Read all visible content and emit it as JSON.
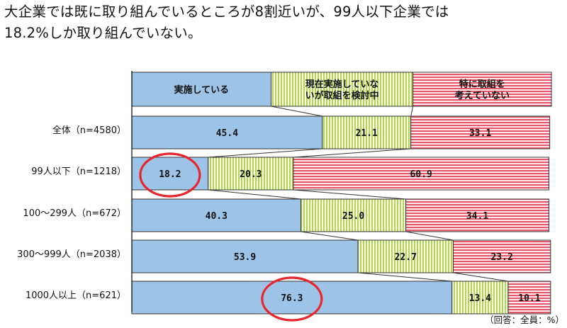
{
  "headline": {
    "line1": "大企業では既に取り組んでいるところが8割近いが、99人以下企業では",
    "line2": "18.2%しか取り組んでいない。"
  },
  "note": "（回答：全員：%）",
  "colors": {
    "implementing": "#9dc3e6",
    "considering": "#c6e06a",
    "not_considering": "#e8546b",
    "highlight_circle": "#e8242c"
  },
  "chart_data": {
    "type": "bar",
    "stacked": true,
    "orientation": "horizontal",
    "percent": true,
    "xlim": [
      0,
      100
    ],
    "categories": [
      "全体（n=4580）",
      "99人以下（n=1218）",
      "100～299人（n=672）",
      "300～999人（n=2038）",
      "1000人以上（n=621）"
    ],
    "series": [
      {
        "name": "実施している",
        "values": [
          45.4,
          18.2,
          40.3,
          53.9,
          76.3
        ]
      },
      {
        "name": "現在実施していないが取組を検討中",
        "name_lines": [
          "現在実施していな",
          "いが取組を検討中"
        ],
        "values": [
          21.1,
          20.3,
          25.0,
          22.7,
          13.4
        ]
      },
      {
        "name": "特に取組を考えていない",
        "name_lines": [
          "特に取組を",
          "考えていない"
        ],
        "values": [
          33.1,
          60.9,
          34.1,
          23.2,
          10.1
        ]
      }
    ],
    "legend_placement": "top",
    "grid": false,
    "highlighted": [
      {
        "category_index": 1,
        "series_index": 0
      },
      {
        "category_index": 4,
        "series_index": 0
      }
    ]
  }
}
